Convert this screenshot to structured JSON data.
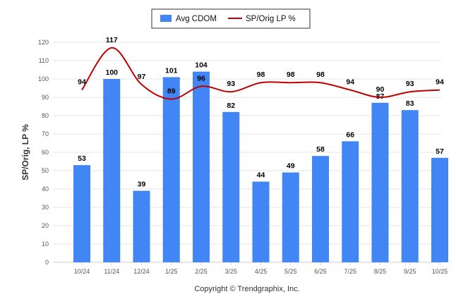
{
  "chart_data": {
    "type": "bar",
    "categories": [
      "10/24",
      "11/24",
      "12/24",
      "1/25",
      "2/25",
      "3/25",
      "4/25",
      "5/25",
      "6/25",
      "7/25",
      "8/25",
      "9/25",
      "10/25"
    ],
    "series": [
      {
        "name": "Avg CDOM",
        "kind": "bar",
        "color": "#4285f4",
        "values": [
          53,
          100,
          39,
          101,
          104,
          82,
          44,
          49,
          58,
          66,
          87,
          83,
          57
        ]
      },
      {
        "name": "SP/Orig LP %",
        "kind": "line",
        "color": "#c00000",
        "values": [
          94,
          117,
          97,
          89,
          96,
          93,
          98,
          98,
          98,
          94,
          90,
          93,
          94
        ]
      }
    ],
    "title": "",
    "xlabel": "",
    "ylabel": "SP/Orig, LP %",
    "ylim": [
      0,
      120
    ],
    "yticks": [
      0,
      10,
      20,
      30,
      40,
      50,
      60,
      70,
      80,
      90,
      100,
      110,
      120
    ],
    "grid": true,
    "legend": "top-center"
  },
  "footer": {
    "copyright": "Copyright © Trendgraphix, Inc."
  }
}
